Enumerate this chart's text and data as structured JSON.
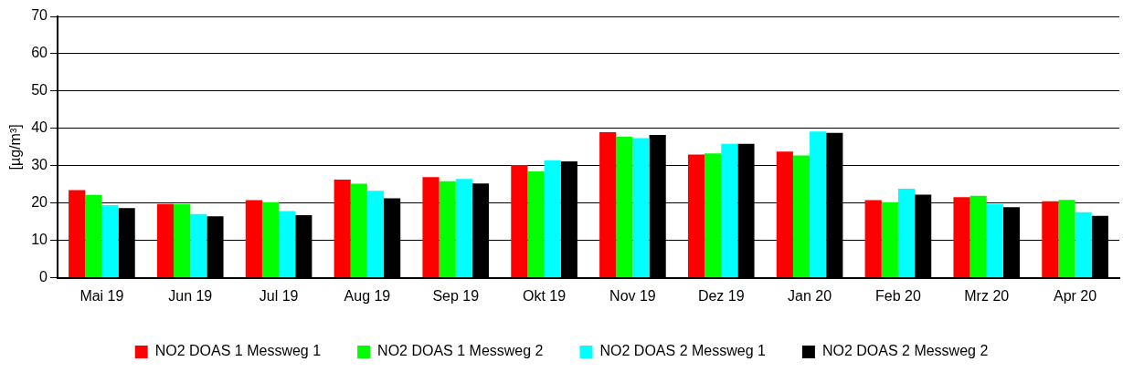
{
  "chart_data": {
    "type": "bar",
    "ylabel": "[µg/m³]",
    "categories": [
      "Mai 19",
      "Jun 19",
      "Jul 19",
      "Aug 19",
      "Sep 19",
      "Okt 19",
      "Nov 19",
      "Dez 19",
      "Jan 20",
      "Feb 20",
      "Mrz 20",
      "Apr 20"
    ],
    "series": [
      {
        "name": "NO2 DOAS 1 Messweg 1",
        "color": "#ff0000",
        "values": [
          23.5,
          19.8,
          20.8,
          26.3,
          27.0,
          30.2,
          39.0,
          33.0,
          33.8,
          20.8,
          21.6,
          20.5
        ]
      },
      {
        "name": "NO2 DOAS 1 Messweg 2",
        "color": "#00ff00",
        "values": [
          22.2,
          19.7,
          20.3,
          25.2,
          25.9,
          28.5,
          37.8,
          33.3,
          32.8,
          20.3,
          22.0,
          20.9
        ]
      },
      {
        "name": "NO2 DOAS 2 Messweg 1",
        "color": "#00ffff",
        "values": [
          19.5,
          17.1,
          17.9,
          23.3,
          26.5,
          31.5,
          37.4,
          35.9,
          39.2,
          23.9,
          19.8,
          17.6
        ]
      },
      {
        "name": "NO2 DOAS 2 Messweg 2",
        "color": "#000000",
        "values": [
          18.7,
          16.5,
          16.8,
          21.3,
          25.3,
          31.2,
          38.3,
          35.9,
          38.8,
          22.3,
          18.9,
          16.6
        ]
      }
    ],
    "ylim": [
      0,
      70
    ],
    "yticks": [
      0,
      10,
      20,
      30,
      40,
      50,
      60,
      70
    ],
    "grid": "y",
    "legend": "bottom"
  }
}
